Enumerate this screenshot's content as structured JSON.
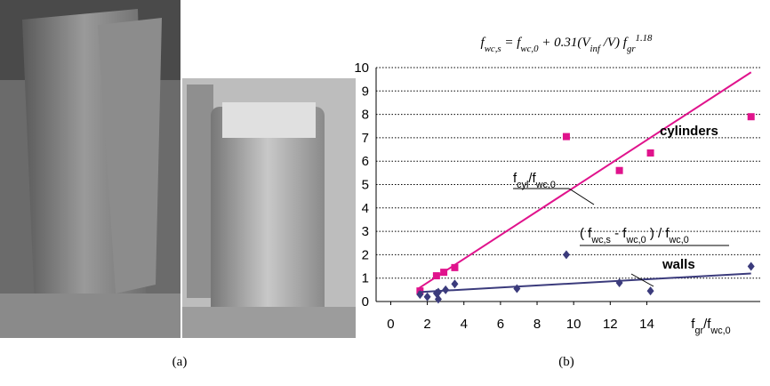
{
  "figure": {
    "captions": [
      "(a)",
      "(b)"
    ]
  },
  "chart_data": {
    "type": "scatter",
    "title": [
      {
        "t": "f",
        "s": ""
      },
      {
        "t": "wc,s",
        "s": "sub"
      },
      {
        "t": " = f",
        "s": ""
      },
      {
        "t": "wc,0",
        "s": "sub"
      },
      {
        "t": " + 0.31(V",
        "s": ""
      },
      {
        "t": "inf",
        "s": "sub"
      },
      {
        "t": " /V) f",
        "s": ""
      },
      {
        "t": "gr",
        "s": "sub"
      },
      {
        "t": "1.18",
        "s": "sup"
      }
    ],
    "x_label": [
      {
        "t": "f",
        "s": ""
      },
      {
        "t": "gr",
        "s": "sub"
      },
      {
        "t": "/f",
        "s": ""
      },
      {
        "t": "wc,0",
        "s": "sub"
      }
    ],
    "xlim": [
      -0.8,
      20.2
    ],
    "xticks": [
      0,
      2,
      4,
      6,
      8,
      10,
      12,
      14
    ],
    "ylim": [
      0,
      10
    ],
    "yticks": [
      0,
      1,
      2,
      3,
      4,
      5,
      6,
      7,
      8,
      9,
      10
    ],
    "grid": true,
    "series": [
      {
        "name": "cylinders",
        "color": "#e0138c",
        "marker": "square",
        "x": [
          1.6,
          2.5,
          2.9,
          3.5,
          9.6,
          12.5,
          14.2,
          19.7
        ],
        "values": [
          0.45,
          1.1,
          1.25,
          1.45,
          7.05,
          5.6,
          6.35,
          7.9
        ],
        "fit": {
          "x": [
            1.5,
            19.7
          ],
          "values": [
            0.55,
            9.8
          ]
        },
        "fit_label": [
          {
            "t": "f",
            "s": ""
          },
          {
            "t": "cyl",
            "s": "sub"
          },
          {
            "t": "/f",
            "s": ""
          },
          {
            "t": "wc,0",
            "s": "sub"
          }
        ]
      },
      {
        "name": "walls",
        "color": "#3b3b7c",
        "marker": "diamond",
        "x": [
          1.6,
          2.0,
          2.5,
          2.6,
          2.6,
          3.0,
          3.5,
          6.9,
          9.6,
          12.5,
          14.2,
          19.7
        ],
        "values": [
          0.3,
          0.2,
          0.35,
          0.1,
          0.4,
          0.5,
          0.75,
          0.55,
          2.0,
          0.8,
          0.45,
          1.5
        ],
        "fit": {
          "x": [
            1.5,
            19.7
          ],
          "values": [
            0.4,
            1.2
          ]
        },
        "fit_label": [
          {
            "t": "( f",
            "s": ""
          },
          {
            "t": "wc,s",
            "s": "sub"
          },
          {
            "t": " - f",
            "s": ""
          },
          {
            "t": "wc,0",
            "s": "sub"
          },
          {
            "t": " ) / f",
            "s": ""
          },
          {
            "t": "wc,0",
            "s": "sub"
          }
        ]
      }
    ]
  }
}
